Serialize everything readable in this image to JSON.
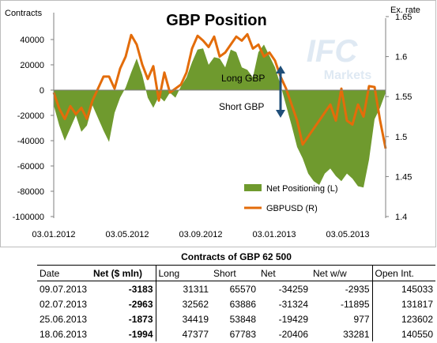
{
  "chart_data": {
    "type": "area",
    "title": "GBP Position",
    "ylabel_left": "Contracts",
    "ylabel_right": "Ex. rate",
    "ylim_left": [
      -100000,
      50000
    ],
    "ylim_right": [
      1.4,
      1.65
    ],
    "yticks_left": [
      "40000",
      "20000",
      "0",
      "-20000",
      "-40000",
      "-60000",
      "-80000",
      "-100000"
    ],
    "yticks_right": [
      "1.65",
      "1.6",
      "1.55",
      "1.5",
      "1.45",
      "1.4"
    ],
    "xticks": [
      "03.01.2012",
      "03.05.2012",
      "03.09.2012",
      "03.01.2013",
      "03.05.2013"
    ],
    "annotations": {
      "long": "Long GBP",
      "short": "Short GBP"
    },
    "watermark": {
      "line1": "IFC",
      "line2": "Markets"
    },
    "series": [
      {
        "name": "Net Positioning (L)",
        "color": "#6f9a2e",
        "values": [
          -12000,
          -28000,
          -40000,
          -30000,
          -20000,
          -33000,
          -28000,
          -12000,
          -22000,
          -32000,
          -41000,
          -18000,
          -6000,
          2000,
          14000,
          25000,
          12000,
          -6000,
          -14000,
          -5000,
          -9000,
          -2000,
          -6000,
          3000,
          10000,
          22000,
          32000,
          33000,
          20000,
          26000,
          25000,
          18000,
          32000,
          30000,
          18000,
          16000,
          10000,
          30000,
          36000,
          27000,
          18000,
          4000,
          -12000,
          -28000,
          -45000,
          -54000,
          -66000,
          -72000,
          -75000,
          -66000,
          -62000,
          -68000,
          -72000,
          -66000,
          -70000,
          -76000,
          -77000,
          -55000,
          -23000,
          -14000,
          -2000
        ]
      },
      {
        "name": "GBPUSD (R)",
        "color": "#e36c0a",
        "values": [
          1.555,
          1.535,
          1.522,
          1.538,
          1.528,
          1.536,
          1.522,
          1.545,
          1.56,
          1.575,
          1.575,
          1.56,
          1.585,
          1.6,
          1.627,
          1.615,
          1.59,
          1.572,
          1.588,
          1.545,
          1.58,
          1.555,
          1.56,
          1.565,
          1.58,
          1.61,
          1.626,
          1.62,
          1.612,
          1.625,
          1.6,
          1.605,
          1.615,
          1.625,
          1.62,
          1.628,
          1.61,
          1.615,
          1.6,
          1.605,
          1.595,
          1.575,
          1.56,
          1.54,
          1.52,
          1.49,
          1.5,
          1.51,
          1.52,
          1.53,
          1.54,
          1.52,
          1.56,
          1.52,
          1.515,
          1.54,
          1.525,
          1.563,
          1.562,
          1.52,
          1.485
        ]
      }
    ],
    "legend_position": "bottom-right"
  },
  "table": {
    "title": "Contracts of GBP 62 500",
    "headers": [
      "Date",
      "Net ($ mln)",
      "Long",
      "Short",
      "Net",
      "Net w/w",
      "Open Int."
    ],
    "rows": [
      [
        "09.07.2013",
        "-3183",
        "31311",
        "65570",
        "-34259",
        "-2935",
        "145033"
      ],
      [
        "02.07.2013",
        "-2963",
        "32562",
        "63886",
        "-31324",
        "-11895",
        "131817"
      ],
      [
        "25.06.2013",
        "-1873",
        "34419",
        "53848",
        "-19429",
        "977",
        "123602"
      ],
      [
        "18.06.2013",
        "-1994",
        "47377",
        "67783",
        "-20406",
        "33281",
        "140550"
      ]
    ]
  }
}
